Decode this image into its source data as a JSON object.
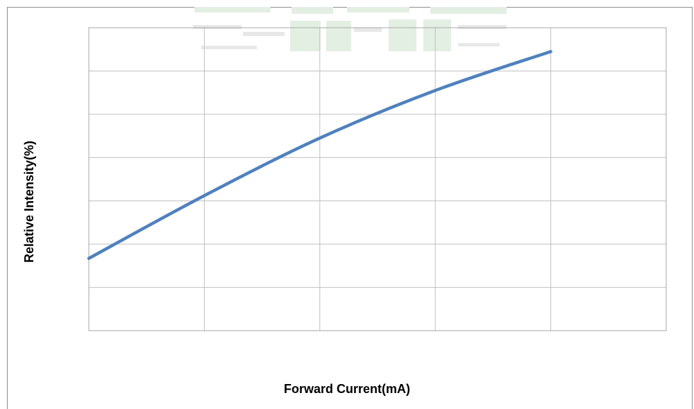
{
  "chart_data": {
    "type": "line",
    "title": "",
    "xlabel": "Forward Current(mA)",
    "ylabel": "Relative Intensity(%)",
    "x_divisions": 5,
    "y_divisions": 7,
    "xlim": [
      0,
      5
    ],
    "ylim": [
      0,
      7
    ],
    "grid": true,
    "series": [
      {
        "color": "#4f81bd",
        "x": [
          0,
          1,
          2,
          3,
          4
        ],
        "y": [
          1.67,
          3.12,
          4.45,
          5.55,
          6.45
        ]
      }
    ]
  }
}
